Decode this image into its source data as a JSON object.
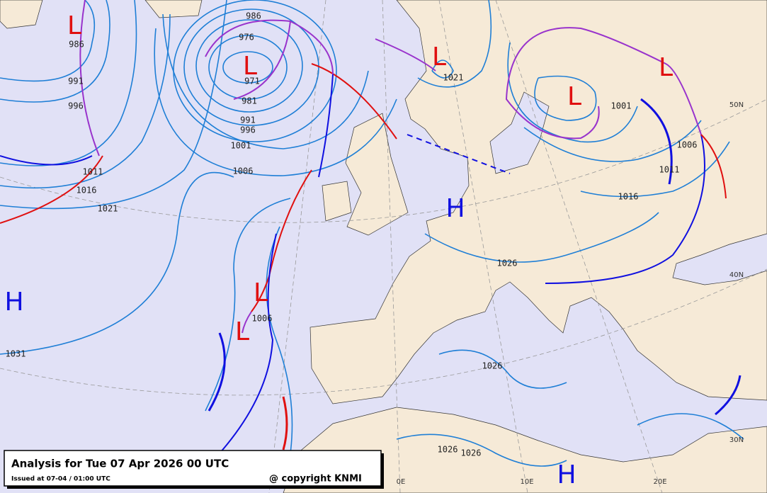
{
  "title": "Analysis for Tue 07 Apr 2026 00 UTC",
  "issued": "Issued at 07-04 / 01:00 UTC",
  "copyright": "@ copyright KNMI",
  "pressure_centers": [
    "L",
    "L",
    "L",
    "L",
    "L",
    "H",
    "H",
    "L",
    "L",
    "H"
  ],
  "isobar_labels": [
    "986",
    "986",
    "976",
    "971",
    "981",
    "991",
    "996",
    "1001",
    "1006",
    "991",
    "996",
    "1011",
    "1016",
    "1021",
    "1021",
    "1001",
    "1006",
    "1011",
    "1016",
    "1026",
    "1006",
    "1031",
    "1026",
    "1026",
    "1026"
  ],
  "grid_labels": [
    "50N",
    "40N",
    "30N",
    "0E",
    "10E",
    "20E"
  ]
}
